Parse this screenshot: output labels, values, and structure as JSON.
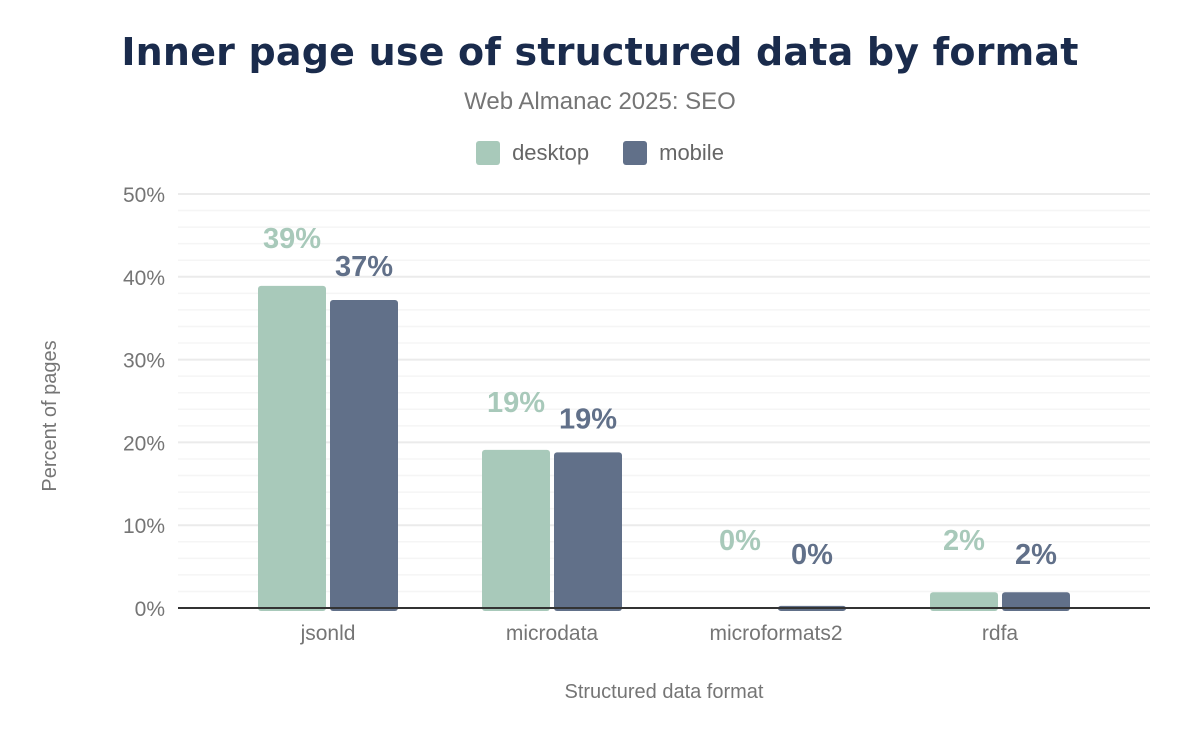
{
  "chart_data": {
    "type": "bar",
    "title": "Inner page use of structured data by format",
    "subtitle": "Web Almanac 2025: SEO",
    "xlabel": "Structured data format",
    "ylabel": "Percent of pages",
    "categories": [
      "jsonld",
      "microdata",
      "microformats2",
      "rdfa"
    ],
    "series": [
      {
        "name": "desktop",
        "color": "#a8c9ba",
        "values": [
          38.9,
          19.1,
          0.0,
          1.9
        ],
        "labels": [
          "39%",
          "19%",
          "0%",
          "2%"
        ]
      },
      {
        "name": "mobile",
        "color": "#617089",
        "values": [
          37.2,
          18.8,
          0.25,
          1.9
        ],
        "labels": [
          "37%",
          "19%",
          "0%",
          "2%"
        ]
      }
    ],
    "ylim": [
      0,
      50
    ],
    "yticks": [
      "0%",
      "10%",
      "20%",
      "30%",
      "40%",
      "50%"
    ],
    "grid": true,
    "legend_position": "top-center"
  }
}
